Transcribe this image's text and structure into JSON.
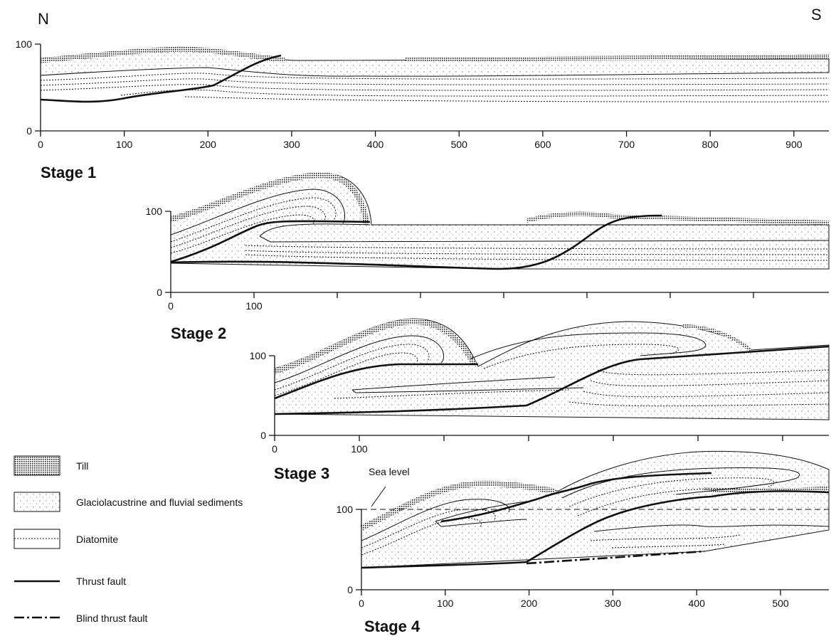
{
  "header": {
    "north": "N",
    "south": "S"
  },
  "panels": [
    {
      "stage": "Stage 1",
      "yticks": [
        0,
        100
      ],
      "xticks": [
        0,
        100,
        200,
        300,
        400,
        500,
        600,
        700,
        800,
        900
      ]
    },
    {
      "stage": "Stage 2",
      "yticks": [
        0,
        100
      ],
      "xticks": [
        0,
        100
      ]
    },
    {
      "stage": "Stage 3",
      "yticks": [
        0,
        100
      ],
      "xticks": [
        0,
        100
      ]
    },
    {
      "stage": "Stage 4",
      "yticks": [
        0,
        100
      ],
      "xticks": [
        0,
        100,
        200,
        300,
        400,
        500
      ],
      "annotation": "Sea level"
    }
  ],
  "legend": [
    {
      "label": "Till"
    },
    {
      "label": "Glaciolacustrine and fluvial sediments"
    },
    {
      "label": "Diatomite"
    },
    {
      "label": "Thrust fault"
    },
    {
      "label": "Blind thrust fault"
    }
  ]
}
